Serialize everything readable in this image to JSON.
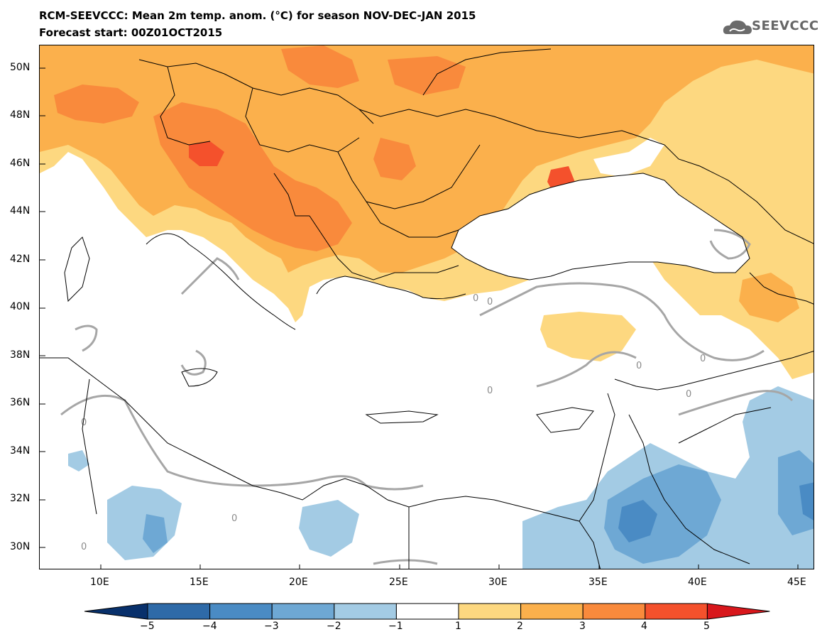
{
  "header": {
    "title": "RCM-SEEVCCC: Mean 2m temp. anom. (°C) for season NOV-DEC-JAN 2015",
    "subtitle": "Forecast start: 00Z01OCT2015",
    "logo_text": "SEEVCCC",
    "logo_icon": "cloud-logo-icon"
  },
  "map": {
    "lat_labels": [
      "50N",
      "48N",
      "46N",
      "44N",
      "42N",
      "40N",
      "38N",
      "36N",
      "34N",
      "32N",
      "30N"
    ],
    "lon_labels": [
      "10E",
      "15E",
      "20E",
      "25E",
      "30E",
      "35E",
      "40E",
      "45E"
    ],
    "contour_labels": [
      "0",
      "0",
      "0",
      "0",
      "0",
      "0",
      "0",
      "0",
      "0"
    ],
    "colors": {
      "ocean": "#ffffff",
      "warm1": "#fdd880",
      "warm2": "#fbb04c",
      "warm3": "#f98a3c",
      "warm4": "#f4512c",
      "warm5": "#d8171c",
      "cool1": "#a3cbe4",
      "cool2": "#6ea8d4",
      "cool3": "#4a8bc4",
      "cool4": "#2e6aa8",
      "contour": "#a6a6a6",
      "border": "#000000"
    }
  },
  "colorbar": {
    "labels": [
      "−5",
      "−4",
      "−3",
      "−2",
      "−1",
      "1",
      "2",
      "3",
      "4",
      "5"
    ],
    "colors": [
      "#08306b",
      "#2e6aa8",
      "#4a8bc4",
      "#6ea8d4",
      "#a3cbe4",
      "#ffffff",
      "#fdd880",
      "#fbb04c",
      "#f98a3c",
      "#f4512c",
      "#d8171c"
    ]
  }
}
